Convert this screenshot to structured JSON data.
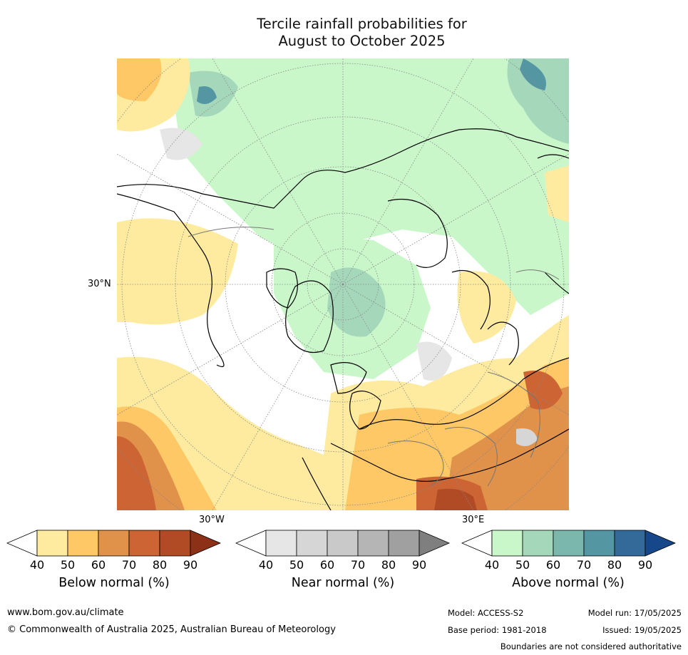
{
  "title": {
    "line1": "Tercile rainfall probabilities for",
    "line2": "August to October 2025"
  },
  "map": {
    "lat_label": "30°N",
    "lon_labels": {
      "west": "30°W",
      "east": "30°E"
    }
  },
  "colorbars": [
    {
      "id": "below",
      "title": "Below normal (%)",
      "ticks": [
        "40",
        "50",
        "60",
        "70",
        "80",
        "90"
      ],
      "colors": [
        "#ffffff",
        "#feeb9f",
        "#fdc865",
        "#e0914a",
        "#cc6533",
        "#b04b26",
        "#8c3117"
      ]
    },
    {
      "id": "near",
      "title": "Near normal (%)",
      "ticks": [
        "40",
        "50",
        "60",
        "70",
        "80",
        "90"
      ],
      "colors": [
        "#ffffff",
        "#e6e6e6",
        "#d6d6d6",
        "#c9c9c9",
        "#b5b5b5",
        "#a0a0a0",
        "#7f7f7f"
      ]
    },
    {
      "id": "above",
      "title": "Above normal (%)",
      "ticks": [
        "40",
        "50",
        "60",
        "70",
        "80",
        "90"
      ],
      "colors": [
        "#ffffff",
        "#c9f7c9",
        "#a5d8bb",
        "#7bb7ad",
        "#5596a3",
        "#336a9a",
        "#16478a"
      ]
    }
  ],
  "footer": {
    "website": "www.bom.gov.au/climate",
    "copyright": "© Commonwealth of Australia 2025, Australian Bureau of Meteorology",
    "model": "Model: ACCESS-S2",
    "model_run": "Model run: 17/05/2025",
    "base_period": "Base period: 1981-2018",
    "issued": "Issued: 19/05/2025",
    "disclaimer": "Boundaries are not considered authoritative"
  }
}
